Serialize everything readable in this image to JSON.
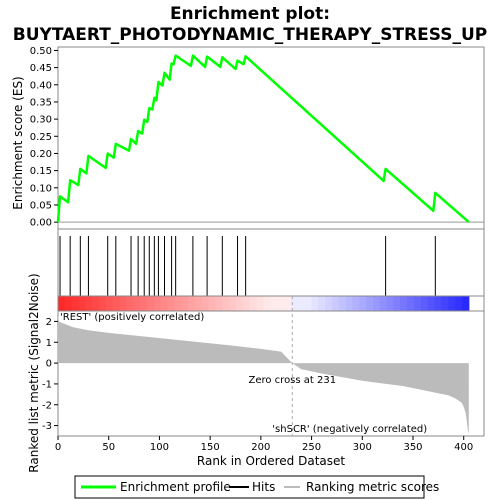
{
  "chart_data": {
    "type": "line",
    "title": "Enrichment plot:",
    "subtitle": "BUYTAERT_PHOTODYNAMIC_THERAPY_STRESS_UP",
    "es_panel": {
      "ylabel": "Enrichment score (ES)",
      "ylim": [
        -0.02,
        0.51
      ],
      "yticks": [
        "0.00",
        "0.05",
        "0.10",
        "0.15",
        "0.20",
        "0.25",
        "0.30",
        "0.35",
        "0.40",
        "0.45",
        "0.50"
      ],
      "ytick_values": [
        0.0,
        0.05,
        0.1,
        0.15,
        0.2,
        0.25,
        0.3,
        0.35,
        0.4,
        0.45,
        0.5
      ],
      "series": [
        {
          "name": "Enrichment profile",
          "color": "#00ff00",
          "x": [
            0,
            2,
            10,
            12,
            20,
            22,
            28,
            30,
            47,
            49,
            55,
            57,
            70,
            72,
            77,
            79,
            83,
            85,
            88,
            90,
            93,
            95,
            97,
            99,
            103,
            105,
            110,
            112,
            114,
            116,
            131,
            133,
            145,
            147,
            160,
            162,
            175,
            177,
            183,
            185,
            321,
            323,
            370,
            372,
            405
          ],
          "y": [
            0.0,
            0.075,
            0.058,
            0.122,
            0.108,
            0.155,
            0.142,
            0.193,
            0.158,
            0.2,
            0.188,
            0.228,
            0.208,
            0.242,
            0.228,
            0.265,
            0.258,
            0.298,
            0.292,
            0.332,
            0.328,
            0.362,
            0.355,
            0.408,
            0.398,
            0.435,
            0.415,
            0.462,
            0.46,
            0.485,
            0.455,
            0.485,
            0.452,
            0.482,
            0.452,
            0.48,
            0.446,
            0.47,
            0.46,
            0.483,
            0.12,
            0.155,
            0.033,
            0.085,
            0.0
          ]
        }
      ]
    },
    "hits_panel": {
      "series": [
        {
          "name": "Hits",
          "color": "#000000",
          "x": [
            2,
            12,
            22,
            30,
            49,
            57,
            72,
            79,
            85,
            90,
            95,
            99,
            105,
            112,
            116,
            133,
            147,
            162,
            177,
            185,
            323,
            372
          ]
        }
      ]
    },
    "heatmap_bar": {
      "positive_color": "#ff0000",
      "negative_color": "#0000ff",
      "x_range": [
        0,
        405
      ]
    },
    "metric_panel": {
      "ylabel": "Ranked list metric (Signal2Noise)",
      "ylim": [
        -3.5,
        2.5
      ],
      "yticks": [
        "-3",
        "-2",
        "-1",
        "0",
        "1",
        "2"
      ],
      "ytick_values": [
        -3,
        -2,
        -1,
        0,
        1,
        2
      ],
      "series": [
        {
          "name": "Ranking metric scores",
          "color": "#bbbbbb",
          "x": [
            0,
            1,
            3,
            8,
            15,
            30,
            50,
            80,
            110,
            140,
            170,
            200,
            220,
            231,
            240,
            260,
            300,
            340,
            370,
            385,
            392,
            398,
            400,
            402,
            403,
            404,
            405
          ],
          "y": [
            2.3,
            2.0,
            1.95,
            1.85,
            1.72,
            1.58,
            1.45,
            1.3,
            1.15,
            1.0,
            0.85,
            0.68,
            0.55,
            0.0,
            -0.3,
            -0.5,
            -0.85,
            -1.1,
            -1.4,
            -1.55,
            -1.7,
            -1.9,
            -2.1,
            -2.4,
            -2.8,
            -3.2,
            -3.4
          ]
        }
      ],
      "annotations": [
        {
          "text": "'REST' (positively correlated)",
          "color": "#cc0000"
        },
        {
          "text": "Zero cross at 231",
          "color": "#000000",
          "x": 231
        },
        {
          "text": "'shSCR' (negatively correlated)",
          "color": "#0000cc"
        }
      ]
    },
    "xlabel": "Rank in Ordered Dataset",
    "xlim": [
      0,
      420
    ],
    "xticks": [
      "0",
      "50",
      "100",
      "150",
      "200",
      "250",
      "300",
      "350",
      "400"
    ],
    "xtick_values": [
      0,
      50,
      100,
      150,
      200,
      250,
      300,
      350,
      400
    ],
    "legend": {
      "placement": "bottom",
      "entries": [
        {
          "label": "Enrichment profile",
          "color": "#00ff00"
        },
        {
          "label": "Hits",
          "color": "#000000"
        },
        {
          "label": "Ranking metric scores",
          "color": "#bbbbbb"
        }
      ]
    }
  }
}
